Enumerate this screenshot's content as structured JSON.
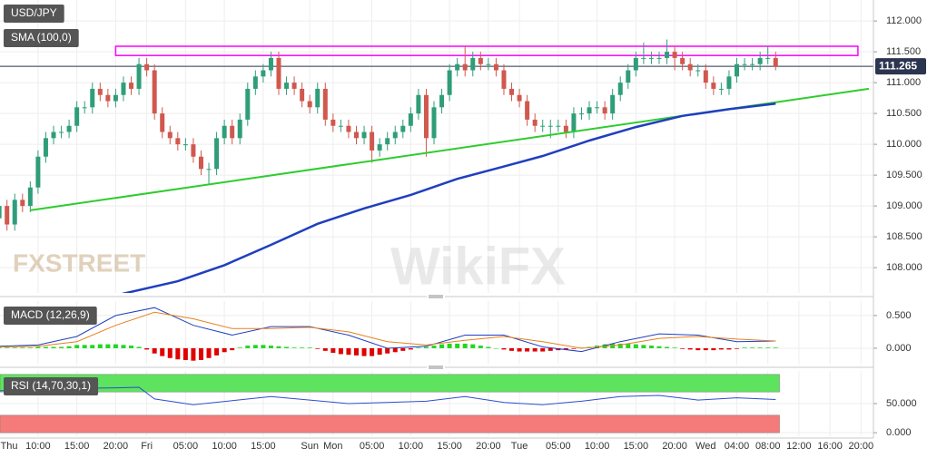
{
  "chart_data": [
    {
      "type": "candlestick",
      "title": "USD/JPY",
      "up_color": "#2f9e78",
      "down_color": "#d0584e",
      "open": [
        108.8,
        109.0,
        108.7,
        109.1,
        109.0,
        109.3,
        109.8,
        110.1,
        110.2,
        110.2,
        110.3,
        110.6,
        110.6,
        110.9,
        110.8,
        110.7,
        110.8,
        111.0,
        110.9,
        111.3,
        111.2,
        110.5,
        110.2,
        110.1,
        110.0,
        110.0,
        109.8,
        109.6,
        109.6,
        110.1,
        110.3,
        110.1,
        110.4,
        110.9,
        111.1,
        111.2,
        111.4,
        110.9,
        111.0,
        110.9,
        110.7,
        110.6,
        110.9,
        110.4,
        110.3,
        110.3,
        110.2,
        110.1,
        110.2,
        109.9,
        110.0,
        110.1,
        110.2,
        110.3,
        110.5,
        110.8,
        110.1,
        110.6,
        110.8,
        111.2,
        111.3,
        111.2,
        111.4,
        111.3,
        111.3,
        111.2,
        110.9,
        110.8,
        110.7,
        110.4,
        110.3,
        110.3,
        110.3,
        110.3,
        110.2,
        110.5,
        110.5,
        110.6,
        110.6,
        110.5,
        110.8,
        111.0,
        111.2,
        111.4,
        111.4,
        111.4,
        111.4,
        111.5,
        111.4,
        111.3,
        111.2,
        111.2,
        111.0,
        110.9,
        110.9,
        111.1,
        111.3,
        111.3,
        111.3,
        111.4,
        111.4
      ],
      "high": [
        109.1,
        109.1,
        109.2,
        109.2,
        109.4,
        109.9,
        110.2,
        110.3,
        110.3,
        110.4,
        110.7,
        110.7,
        111.0,
        111.0,
        110.9,
        110.9,
        111.1,
        111.1,
        111.4,
        111.4,
        111.3,
        110.6,
        110.3,
        110.2,
        110.1,
        110.1,
        109.9,
        109.7,
        110.2,
        110.4,
        110.4,
        110.5,
        111.0,
        111.2,
        111.3,
        111.5,
        111.5,
        111.1,
        111.1,
        111.0,
        110.8,
        111.0,
        111.0,
        110.5,
        110.4,
        110.4,
        110.3,
        110.3,
        110.3,
        110.1,
        110.2,
        110.3,
        110.4,
        110.6,
        110.9,
        110.9,
        110.7,
        110.9,
        111.3,
        111.4,
        111.6,
        111.5,
        111.5,
        111.4,
        111.4,
        111.3,
        111.0,
        110.9,
        110.8,
        110.5,
        110.4,
        110.4,
        110.4,
        110.4,
        110.6,
        110.6,
        110.7,
        110.7,
        110.7,
        110.9,
        111.1,
        111.3,
        111.5,
        111.65,
        111.5,
        111.5,
        111.7,
        111.6,
        111.5,
        111.4,
        111.3,
        111.3,
        111.1,
        111.0,
        111.2,
        111.4,
        111.4,
        111.4,
        111.5,
        111.6,
        111.5
      ],
      "low": [
        108.7,
        108.6,
        108.6,
        108.9,
        108.9,
        109.2,
        109.7,
        110.0,
        110.1,
        110.1,
        110.2,
        110.5,
        110.5,
        110.7,
        110.6,
        110.6,
        110.7,
        110.8,
        110.8,
        111.1,
        110.4,
        110.1,
        110.0,
        109.9,
        109.9,
        109.7,
        109.5,
        109.35,
        109.5,
        110.0,
        110.0,
        110.0,
        110.3,
        110.8,
        111.0,
        111.1,
        110.8,
        110.8,
        110.8,
        110.6,
        110.5,
        110.5,
        110.3,
        110.2,
        110.2,
        110.1,
        110.0,
        110.0,
        109.7,
        109.8,
        109.9,
        110.0,
        110.1,
        110.2,
        110.4,
        109.8,
        110.0,
        110.5,
        110.7,
        111.1,
        111.1,
        111.1,
        111.2,
        111.2,
        111.1,
        110.8,
        110.7,
        110.6,
        110.3,
        110.2,
        110.2,
        110.1,
        110.2,
        110.1,
        110.1,
        110.4,
        110.4,
        110.5,
        110.4,
        110.4,
        110.7,
        110.9,
        111.1,
        111.3,
        111.3,
        111.3,
        111.3,
        111.2,
        111.2,
        111.1,
        111.1,
        110.9,
        110.8,
        110.8,
        110.8,
        111.0,
        111.2,
        111.2,
        111.2,
        111.3,
        111.2
      ],
      "close": [
        109.0,
        108.7,
        109.1,
        109.0,
        109.3,
        109.8,
        110.1,
        110.2,
        110.2,
        110.3,
        110.6,
        110.6,
        110.9,
        110.8,
        110.7,
        110.8,
        111.0,
        110.9,
        111.3,
        111.2,
        110.5,
        110.2,
        110.1,
        110.0,
        110.0,
        109.8,
        109.6,
        109.6,
        110.1,
        110.3,
        110.1,
        110.4,
        110.9,
        111.1,
        111.2,
        111.4,
        110.9,
        111.0,
        110.9,
        110.7,
        110.6,
        110.9,
        110.4,
        110.3,
        110.3,
        110.2,
        110.1,
        110.2,
        109.9,
        110.0,
        110.1,
        110.2,
        110.3,
        110.5,
        110.8,
        110.1,
        110.6,
        110.8,
        111.2,
        111.3,
        111.2,
        111.4,
        111.3,
        111.3,
        111.2,
        110.9,
        110.8,
        110.7,
        110.4,
        110.3,
        110.3,
        110.3,
        110.3,
        110.2,
        110.5,
        110.5,
        110.6,
        110.6,
        110.5,
        110.8,
        111.0,
        111.2,
        111.4,
        111.4,
        111.4,
        111.4,
        111.5,
        111.4,
        111.3,
        111.2,
        111.2,
        111.0,
        110.9,
        110.9,
        111.1,
        111.3,
        111.3,
        111.3,
        111.4,
        111.4,
        111.265
      ],
      "sma": {
        "name": "SMA (100,0)",
        "color": "#1f3fbf",
        "x": [
          15,
          23,
          29,
          35,
          41,
          47,
          53,
          59,
          65,
          70,
          76,
          82,
          88,
          94,
          100
        ],
        "values": [
          107.55,
          107.78,
          108.04,
          108.37,
          108.71,
          108.96,
          109.18,
          109.44,
          109.64,
          109.81,
          110.06,
          110.28,
          110.46,
          110.57,
          110.66
        ]
      },
      "trendline": {
        "color": "#2ecc2e",
        "x": [
          4,
          112
        ],
        "values": [
          108.93,
          110.9
        ]
      },
      "resistance_zone": {
        "color": "#ff00ff",
        "x": [
          15,
          110.6
        ],
        "values": [
          111.44,
          111.59
        ]
      },
      "last_price": 111.265,
      "ylim": [
        107.59,
        112.34
      ],
      "yticks": [
        {
          "value": 112,
          "label": "112.000"
        },
        {
          "value": 111.5,
          "label": "111.500"
        },
        {
          "value": 111,
          "label": "111.000"
        },
        {
          "value": 110.5,
          "label": "110.500"
        },
        {
          "value": 110,
          "label": "110.000"
        },
        {
          "value": 109.5,
          "label": "109.500"
        },
        {
          "value": 109,
          "label": "109.000"
        },
        {
          "value": 108.5,
          "label": "108.500"
        },
        {
          "value": 108,
          "label": "108.000"
        }
      ],
      "xlim": [
        0.1,
        112.6
      ],
      "xticks": [
        {
          "value": -5,
          "label": "Thu"
        },
        {
          "value": 5,
          "label": "10:00"
        },
        {
          "value": 10,
          "label": "15:00"
        },
        {
          "value": 15,
          "label": "20:00"
        },
        {
          "value": 19,
          "label": "Fri"
        },
        {
          "value": 24,
          "label": "05:00"
        },
        {
          "value": 29,
          "label": "10:00"
        },
        {
          "value": 34,
          "label": "15:00"
        },
        {
          "value": 40,
          "label": "Sun"
        },
        {
          "value": 43,
          "label": "Mon"
        },
        {
          "value": 48,
          "label": "05:00"
        },
        {
          "value": 53,
          "label": "10:00"
        },
        {
          "value": 58,
          "label": "15:00"
        },
        {
          "value": 63,
          "label": "20:00"
        },
        {
          "value": 67,
          "label": "Tue"
        },
        {
          "value": 72,
          "label": "05:00"
        },
        {
          "value": 77,
          "label": "10:00"
        },
        {
          "value": 82,
          "label": "15:00"
        },
        {
          "value": 87,
          "label": "20:00"
        },
        {
          "value": 91,
          "label": "Wed"
        },
        {
          "value": 95,
          "label": "04:00"
        },
        {
          "value": 99,
          "label": "08:00"
        },
        {
          "value": 103,
          "label": "12:00"
        },
        {
          "value": 107,
          "label": "16:00"
        },
        {
          "value": 111,
          "label": "20:00"
        }
      ],
      "grid": true,
      "watermarks": [
        "FXSTREET",
        "WikiFX"
      ]
    },
    {
      "type": "macd",
      "title": "MACD (12,26,9)",
      "histogram": {
        "positive_color": "#22d622",
        "negative_color": "#e00000",
        "values": [
          0.01,
          0.01,
          0.01,
          0.01,
          0.01,
          0.02,
          0.02,
          0.02,
          0.02,
          0.03,
          0.05,
          0.05,
          0.05,
          0.06,
          0.06,
          0.06,
          0.05,
          0.04,
          0.02,
          -0.02,
          -0.08,
          -0.12,
          -0.15,
          -0.17,
          -0.18,
          -0.19,
          -0.18,
          -0.15,
          -0.11,
          -0.06,
          -0.03,
          0.01,
          0.04,
          0.05,
          0.05,
          0.04,
          0.03,
          0.02,
          0.01,
          0.01,
          0.01,
          -0.01,
          -0.04,
          -0.07,
          -0.09,
          -0.1,
          -0.11,
          -0.12,
          -0.12,
          -0.1,
          -0.08,
          -0.06,
          -0.04,
          -0.02,
          0.01,
          0.02,
          0.04,
          0.06,
          0.07,
          0.07,
          0.07,
          0.06,
          0.04,
          0.02,
          0.0,
          -0.02,
          -0.04,
          -0.05,
          -0.05,
          -0.05,
          -0.05,
          -0.04,
          -0.03,
          -0.02,
          -0.01,
          0.01,
          0.02,
          0.04,
          0.06,
          0.07,
          0.07,
          0.07,
          0.06,
          0.05,
          0.04,
          0.03,
          0.02,
          0.01,
          -0.01,
          -0.02,
          -0.03,
          -0.03,
          -0.03,
          -0.02,
          -0.02,
          -0.01,
          0.01,
          0.01,
          0.01,
          0.01,
          0.01
        ]
      },
      "lines": [
        {
          "color": "#2040c0",
          "x": [
            0,
            5,
            10,
            15,
            20,
            25,
            30,
            35,
            40,
            45,
            50,
            55,
            60,
            65,
            70,
            75,
            80,
            85,
            90,
            95,
            100
          ],
          "values": [
            0.03,
            0.05,
            0.18,
            0.5,
            0.62,
            0.35,
            0.2,
            0.33,
            0.33,
            0.2,
            0.0,
            0.03,
            0.2,
            0.2,
            0.02,
            -0.05,
            0.1,
            0.22,
            0.2,
            0.1,
            0.11
          ]
        },
        {
          "color": "#e8801e",
          "x": [
            0,
            5,
            10,
            15,
            20,
            25,
            30,
            35,
            40,
            45,
            50,
            55,
            60,
            65,
            70,
            75,
            80,
            85,
            90,
            95,
            100
          ],
          "values": [
            0.02,
            0.03,
            0.1,
            0.35,
            0.55,
            0.45,
            0.3,
            0.3,
            0.32,
            0.25,
            0.1,
            0.05,
            0.12,
            0.18,
            0.1,
            0.0,
            0.05,
            0.15,
            0.18,
            0.14,
            0.11
          ]
        }
      ],
      "ylim": [
        -0.25,
        0.72
      ],
      "yticks": [
        {
          "value": 0.5,
          "label": "0.500"
        },
        {
          "value": 0,
          "label": "0.000"
        }
      ]
    },
    {
      "type": "line",
      "title": "RSI (14,70,30,1)",
      "bands": [
        {
          "from": 70,
          "to": 100,
          "color": "#5ee35e"
        },
        {
          "from": 0,
          "to": 30,
          "color": "#f57b7b"
        }
      ],
      "color": "#2a4fd0",
      "x": [
        0,
        5,
        10,
        15,
        18,
        20,
        25,
        30,
        35,
        40,
        45,
        50,
        55,
        60,
        65,
        70,
        75,
        80,
        85,
        90,
        95,
        100
      ],
      "values": [
        72,
        75,
        76,
        77,
        78,
        58,
        48,
        55,
        62,
        56,
        50,
        52,
        54,
        62,
        52,
        48,
        54,
        62,
        64,
        56,
        60,
        57
      ],
      "ylim": [
        -6,
        106
      ],
      "yticks": [
        {
          "value": 50,
          "label": "50.000"
        },
        {
          "value": 0,
          "label": "0.000"
        }
      ]
    }
  ]
}
